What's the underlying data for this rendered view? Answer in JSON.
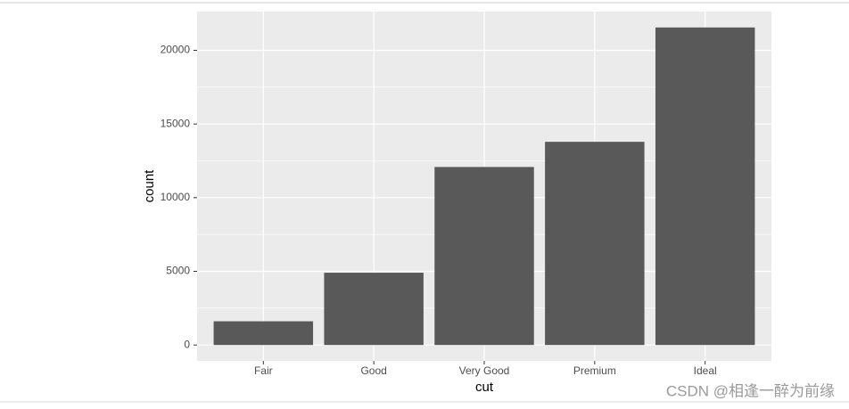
{
  "chart_data": {
    "type": "bar",
    "x_label": "cut",
    "y_label": "count",
    "categories": [
      "Fair",
      "Good",
      "Very Good",
      "Premium",
      "Ideal"
    ],
    "values": [
      1610,
      4906,
      12082,
      13791,
      21551
    ],
    "color": "#595959",
    "ylim": [
      -1077.55,
      22628.55
    ],
    "yticks": [
      0,
      5000,
      10000,
      15000,
      20000
    ],
    "y_minor_ticks": [
      2500,
      7500,
      12500,
      17500
    ],
    "grid": true,
    "panel_color": "#ebebeb"
  },
  "watermark": "CSDN @相逢一醉为前缘"
}
